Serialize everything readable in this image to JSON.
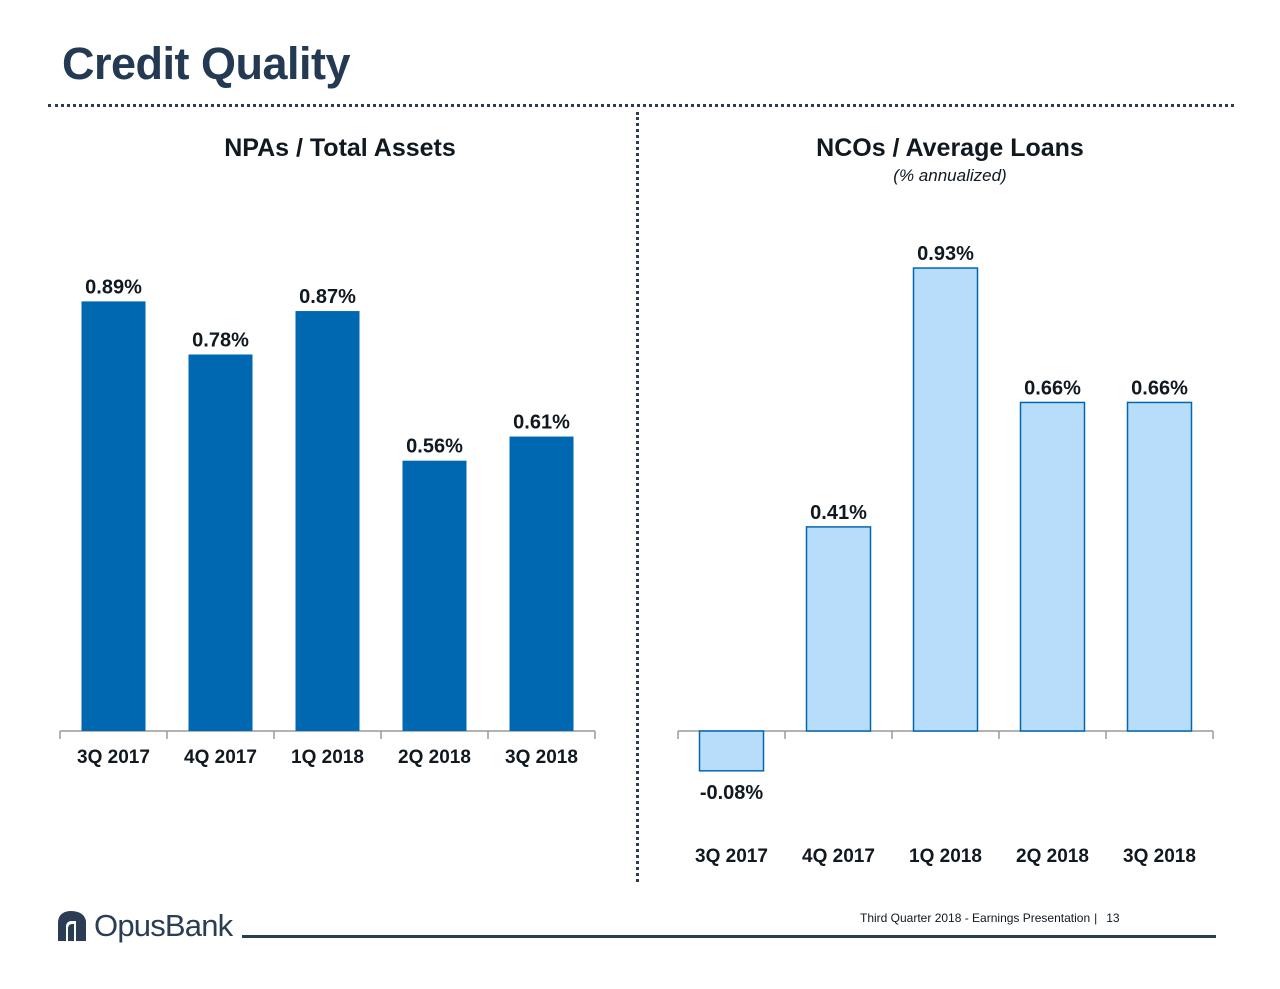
{
  "page": {
    "title": "Credit Quality"
  },
  "chart_data": [
    {
      "type": "bar",
      "title": "NPAs / Total Assets",
      "subtitle": "",
      "categories": [
        "3Q 2017",
        "4Q 2017",
        "1Q 2018",
        "2Q 2018",
        "3Q 2018"
      ],
      "values": [
        0.89,
        0.78,
        0.87,
        0.56,
        0.61
      ],
      "data_labels": [
        "0.89%",
        "0.78%",
        "0.87%",
        "0.56%",
        "0.61%"
      ],
      "unit": "%",
      "ylim": [
        0,
        1.0
      ],
      "grid": false,
      "color": "#0067b1"
    },
    {
      "type": "bar",
      "title": "NCOs / Average Loans",
      "subtitle": "(% annualized)",
      "categories": [
        "3Q 2017",
        "4Q 2017",
        "1Q 2018",
        "2Q 2018",
        "3Q 2018"
      ],
      "values": [
        -0.08,
        0.41,
        0.93,
        0.66,
        0.66
      ],
      "data_labels": [
        "-0.08%",
        "0.41%",
        "0.93%",
        "0.66%",
        "0.66%"
      ],
      "unit": "%",
      "ylim": [
        -0.1,
        1.0
      ],
      "grid": false,
      "color": "#b8ddfb",
      "border_color": "#0067b1"
    }
  ],
  "footer": {
    "text": "Third Quarter 2018 - Earnings Presentation",
    "separator": "|",
    "page_number": "13"
  },
  "logo": {
    "text": "OpusBank"
  }
}
